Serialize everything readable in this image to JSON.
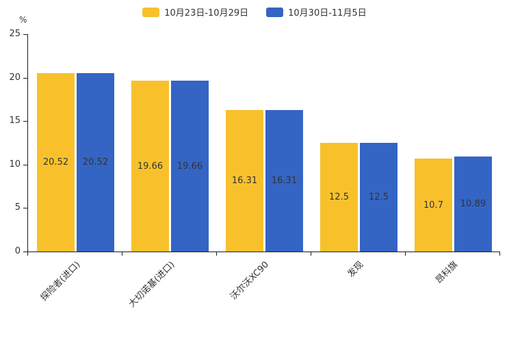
{
  "unit_label": "%",
  "chart_data": {
    "type": "bar",
    "title": "",
    "categories": [
      "探险者(进口)",
      "大切诺基(进口)",
      "沃尔沃XC90",
      "发现",
      "昂科旗"
    ],
    "series": [
      {
        "name": "10月23日-10月29日",
        "color": "#F8C12C",
        "values": [
          20.52,
          19.66,
          16.31,
          12.5,
          10.7
        ]
      },
      {
        "name": "10月30日-11月5日",
        "color": "#3465C4",
        "values": [
          20.52,
          19.66,
          16.31,
          12.5,
          10.89
        ]
      }
    ],
    "xlabel": "",
    "ylabel": "%",
    "ylim": [
      0,
      25
    ],
    "yticks": [
      0,
      5,
      10,
      15,
      20,
      25
    ],
    "legend_position": "top",
    "grid": false,
    "bar_label_color": "#333333",
    "axis_color": "#1a1a1a"
  }
}
